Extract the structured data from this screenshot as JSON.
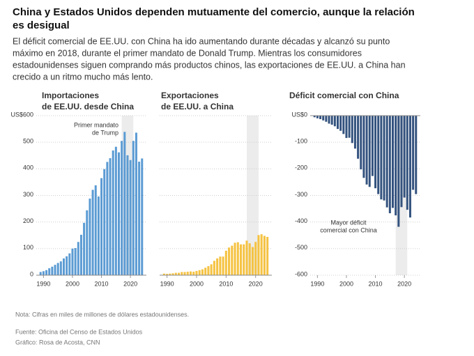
{
  "title": [
    "China y Estados Unidos dependen mutuamente del comercio, aunque la relación",
    "es desigual"
  ],
  "subtitle": [
    "El déficit comercial de EE.UU. con China ha ido aumentando durante décadas y alcanzó su punto",
    "máximo en 2018, durante el primer mandato de Donald Trump. Mientras los consumidores",
    "estadounidenses siguen comprando más productos chinos, las exportaciones de EE.UU. a China han",
    "crecido a un ritmo mucho más lento."
  ],
  "note": "Nota: Cifras en miles de millones de dólares estadounidenses.",
  "source": "Fuente: Oficina del Censo de Estados Unidos",
  "credit": "Gráfico: Rosa de Acosta, CNN",
  "chart_data": [
    {
      "type": "bar",
      "title": [
        "Importaciones",
        "de EE.UU. desde China"
      ],
      "color": "#5b9bd3",
      "x": [
        1989,
        1990,
        1991,
        1992,
        1993,
        1994,
        1995,
        1996,
        1997,
        1998,
        1999,
        2000,
        2001,
        2002,
        2003,
        2004,
        2005,
        2006,
        2007,
        2008,
        2009,
        2010,
        2011,
        2012,
        2013,
        2014,
        2015,
        2016,
        2017,
        2018,
        2019,
        2020,
        2021,
        2022,
        2023,
        2024
      ],
      "values": [
        12,
        15,
        19,
        26,
        32,
        39,
        46,
        52,
        63,
        71,
        82,
        100,
        102,
        125,
        152,
        197,
        244,
        288,
        321,
        338,
        296,
        365,
        399,
        426,
        440,
        469,
        483,
        462,
        505,
        539,
        451,
        433,
        505,
        536,
        427,
        439
      ],
      "xlim": [
        1987.5,
        2025.5
      ],
      "xticks": [
        1990,
        2000,
        2010,
        2020
      ],
      "ylim": [
        0,
        600
      ],
      "yticks": [
        0,
        100,
        200,
        300,
        400,
        500,
        {
          "value": 600,
          "label": "US$600"
        }
      ],
      "grid": true,
      "highlight_range": [
        2017,
        2021
      ],
      "annotation": [
        "Primer mandato",
        "de Trump"
      ]
    },
    {
      "type": "bar",
      "title": [
        "Exportaciones",
        "de EE.UU. a China"
      ],
      "color": "#f5c343",
      "x": [
        1989,
        1990,
        1991,
        1992,
        1993,
        1994,
        1995,
        1996,
        1997,
        1998,
        1999,
        2000,
        2001,
        2002,
        2003,
        2004,
        2005,
        2006,
        2007,
        2008,
        2009,
        2010,
        2011,
        2012,
        2013,
        2014,
        2015,
        2016,
        2017,
        2018,
        2019,
        2020,
        2021,
        2022,
        2023,
        2024
      ],
      "values": [
        6,
        5,
        6,
        7,
        9,
        9,
        12,
        12,
        13,
        14,
        13,
        16,
        19,
        22,
        28,
        34,
        41,
        54,
        63,
        70,
        70,
        92,
        104,
        111,
        122,
        124,
        116,
        116,
        130,
        120,
        106,
        125,
        151,
        154,
        148,
        144
      ],
      "xlim": [
        1987.5,
        2025.5
      ],
      "xticks": [
        1990,
        2000,
        2010,
        2020
      ],
      "ylim": [
        0,
        600
      ],
      "yticks": [
        0,
        100,
        200,
        300,
        400,
        500,
        600
      ],
      "ytick_labels": false,
      "grid": true,
      "highlight_range": [
        2017,
        2021
      ]
    },
    {
      "type": "bar",
      "title": [
        "Déficit comercial con China"
      ],
      "color": "#33527e",
      "x": [
        1989,
        1990,
        1991,
        1992,
        1993,
        1994,
        1995,
        1996,
        1997,
        1998,
        1999,
        2000,
        2001,
        2002,
        2003,
        2004,
        2005,
        2006,
        2007,
        2008,
        2009,
        2010,
        2011,
        2012,
        2013,
        2014,
        2015,
        2016,
        2017,
        2018,
        2019,
        2020,
        2021,
        2022,
        2023,
        2024
      ],
      "values": [
        -6,
        -10,
        -13,
        -18,
        -23,
        -30,
        -34,
        -40,
        -50,
        -57,
        -69,
        -84,
        -83,
        -103,
        -124,
        -162,
        -202,
        -234,
        -259,
        -268,
        -227,
        -273,
        -295,
        -315,
        -319,
        -345,
        -367,
        -347,
        -375,
        -418,
        -344,
        -308,
        -354,
        -383,
        -279,
        -295
      ],
      "xlim": [
        1987.5,
        2025.5
      ],
      "xticks": [
        1990,
        2000,
        2010,
        2020
      ],
      "ylim": [
        -600,
        0
      ],
      "yticks": [
        {
          "value": 0,
          "label": "US$0"
        },
        -100,
        -200,
        -300,
        -400,
        -500,
        -600
      ],
      "grid": true,
      "highlight_range": [
        2017,
        2021
      ],
      "annotation": [
        "Mayor déficit",
        "comercial con China"
      ]
    }
  ]
}
